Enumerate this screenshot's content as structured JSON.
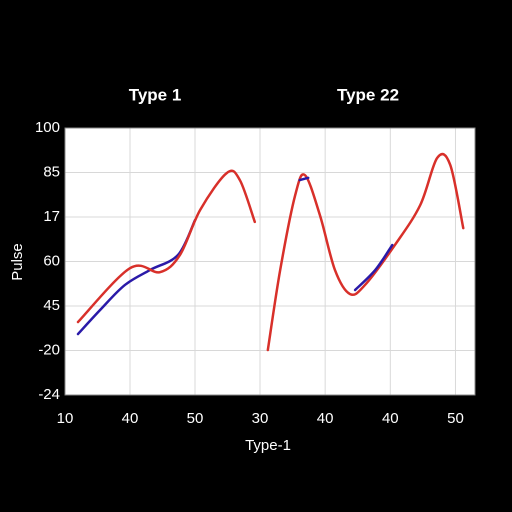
{
  "chart_data": [
    {
      "type": "line",
      "title": "Type 1",
      "xlabel": "Type-1",
      "ylabel": "Pulse",
      "xlim": [
        0,
        3
      ],
      "xticks": [
        {
          "value": 0,
          "label": "10"
        },
        {
          "value": 1,
          "label": "40"
        },
        {
          "value": 2,
          "label": "50"
        },
        {
          "value": 3,
          "label": "30"
        }
      ],
      "ylim": [
        0,
        6
      ],
      "yticks": [
        {
          "value": 0,
          "label": "-24"
        },
        {
          "value": 1,
          "label": "-20"
        },
        {
          "value": 2,
          "label": "45"
        },
        {
          "value": 3,
          "label": "60"
        },
        {
          "value": 4,
          "label": "17"
        },
        {
          "value": 5,
          "label": "85"
        },
        {
          "value": 6,
          "label": "100"
        }
      ],
      "grid": true,
      "series": [
        {
          "color": "#2a1aa8",
          "x": [
            0.2,
            0.54,
            0.92,
            1.31,
            1.74,
            2.0
          ],
          "values": [
            1.37,
            1.91,
            2.47,
            2.81,
            3.15,
            3.93
          ]
        },
        {
          "color": "#d8302a",
          "x": [
            0.2,
            1.0,
            1.46,
            1.77,
            2.08,
            2.49,
            2.69,
            2.92
          ],
          "values": [
            1.64,
            2.85,
            2.76,
            3.15,
            4.16,
            4.99,
            4.83,
            3.89
          ]
        }
      ]
    },
    {
      "type": "line",
      "title": "Type 22",
      "xlim": [
        0,
        3.3
      ],
      "xticks": [
        {
          "value": 1,
          "label": "40"
        },
        {
          "value": 2,
          "label": "40"
        },
        {
          "value": 3,
          "label": "50"
        }
      ],
      "ylim": [
        0,
        6
      ],
      "grid": true,
      "series": [
        {
          "color": "#d8302a",
          "x": [
            0.12,
            0.31,
            0.54,
            0.69,
            0.92,
            1.15,
            1.38,
            1.61,
            2.07,
            2.46,
            2.72,
            2.92,
            3.12
          ],
          "values": [
            1.01,
            2.81,
            4.49,
            4.94,
            4.04,
            2.81,
            2.27,
            2.47,
            3.37,
            4.27,
            5.33,
            5.17,
            3.75
          ]
        },
        {
          "color": "#2a1aa8",
          "x": [
            0.61,
            0.74,
            null,
            1.46,
            1.77,
            2.03
          ],
          "values": [
            4.83,
            4.88,
            null,
            2.36,
            2.81,
            3.37
          ]
        }
      ]
    }
  ]
}
